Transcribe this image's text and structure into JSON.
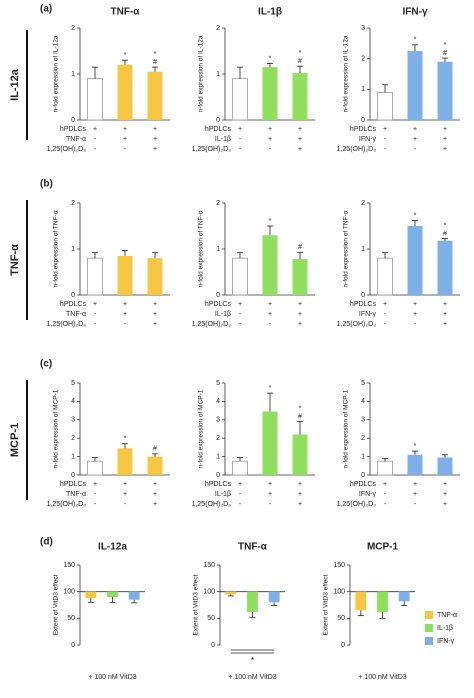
{
  "panel_labels": [
    "(a)",
    "(b)",
    "(c)",
    "(d)"
  ],
  "row_labels": [
    "IL-12a",
    "TNF-α",
    "MCP-1"
  ],
  "legend": [
    {
      "name": "TNF-α",
      "color": "#f7c744"
    },
    {
      "name": "IL-1β",
      "color": "#8fe05c"
    },
    {
      "name": "IFN-γ",
      "color": "#7cb0e6"
    }
  ],
  "chart_data": [
    {
      "type": "bar",
      "title": "TNF-α",
      "y_label": "n-fold expression of IL-12a",
      "values": [
        0.9,
        1.2,
        1.05
      ],
      "errors": [
        0.25,
        0.1,
        0.1
      ],
      "colors": [
        "#ffffff",
        "#f7c744",
        "#f7c744"
      ],
      "ylim": [
        0,
        2
      ],
      "yticks": [
        0,
        1,
        2
      ],
      "annotations": [
        null,
        [
          "*"
        ],
        [
          "*",
          "#"
        ]
      ],
      "table": [
        {
          "label": "hPDLCs",
          "cells": [
            "+",
            "+",
            "+"
          ]
        },
        {
          "label": "TNF-α",
          "cells": [
            "-",
            "+",
            "+"
          ]
        },
        {
          "label": "1,25(OH)₂D₃",
          "cells": [
            "-",
            "-",
            "+"
          ]
        }
      ]
    },
    {
      "type": "bar",
      "title": "IL-1β",
      "y_label": "n-fold expression of IL-12a",
      "values": [
        0.9,
        1.15,
        1.02
      ],
      "errors": [
        0.25,
        0.08,
        0.15
      ],
      "colors": [
        "#ffffff",
        "#8fe05c",
        "#8fe05c"
      ],
      "ylim": [
        0,
        2
      ],
      "yticks": [
        0,
        1,
        2
      ],
      "annotations": [
        null,
        [
          "*"
        ],
        [
          "*",
          "#"
        ]
      ],
      "table": [
        {
          "label": "hPDLCs",
          "cells": [
            "+",
            "+",
            "+"
          ]
        },
        {
          "label": "IL-1β",
          "cells": [
            "-",
            "+",
            "+"
          ]
        },
        {
          "label": "1,25(OH)₂D₃",
          "cells": [
            "-",
            "-",
            "+"
          ]
        }
      ]
    },
    {
      "type": "bar",
      "title": "IFN-γ",
      "y_label": "n-fold expression of IL-12a",
      "values": [
        0.9,
        2.25,
        1.9
      ],
      "errors": [
        0.25,
        0.2,
        0.12
      ],
      "colors": [
        "#ffffff",
        "#7cb0e6",
        "#7cb0e6"
      ],
      "ylim": [
        0,
        3
      ],
      "yticks": [
        0,
        1,
        2,
        3
      ],
      "annotations": [
        null,
        [
          "*"
        ],
        [
          "*",
          "#"
        ]
      ],
      "table": [
        {
          "label": "hPDLCs",
          "cells": [
            "+",
            "+",
            "+"
          ]
        },
        {
          "label": "IFN-γ",
          "cells": [
            "-",
            "+",
            "+"
          ]
        },
        {
          "label": "1,25(OH)₂D₃",
          "cells": [
            "-",
            "-",
            "+"
          ]
        }
      ]
    },
    {
      "type": "bar",
      "y_label": "n-fold expression of TNF-α",
      "values": [
        0.8,
        0.85,
        0.8
      ],
      "errors": [
        0.12,
        0.12,
        0.12
      ],
      "colors": [
        "#ffffff",
        "#f7c744",
        "#f7c744"
      ],
      "ylim": [
        0,
        2
      ],
      "yticks": [
        0,
        1,
        2
      ],
      "table": [
        {
          "label": "hPDLCs",
          "cells": [
            "+",
            "+",
            "+"
          ]
        },
        {
          "label": "TNF-α",
          "cells": [
            "-",
            "+",
            "+"
          ]
        },
        {
          "label": "1,25(OH)₂D₃",
          "cells": [
            "-",
            "-",
            "+"
          ]
        }
      ]
    },
    {
      "type": "bar",
      "y_label": "n-fold expression of TNF-α",
      "values": [
        0.8,
        1.3,
        0.78
      ],
      "errors": [
        0.12,
        0.2,
        0.15
      ],
      "colors": [
        "#ffffff",
        "#8fe05c",
        "#8fe05c"
      ],
      "ylim": [
        0,
        2
      ],
      "yticks": [
        0,
        1,
        2
      ],
      "annotations": [
        null,
        [
          "*"
        ],
        [
          "#"
        ]
      ],
      "table": [
        {
          "label": "hPDLCs",
          "cells": [
            "+",
            "+",
            "+"
          ]
        },
        {
          "label": "IL-1β",
          "cells": [
            "-",
            "+",
            "+"
          ]
        },
        {
          "label": "1,25(OH)₂D₃",
          "cells": [
            "-",
            "-",
            "+"
          ]
        }
      ]
    },
    {
      "type": "bar",
      "y_label": "n-fold expression of TNF-α",
      "values": [
        0.8,
        1.5,
        1.18
      ],
      "errors": [
        0.12,
        0.12,
        0.05
      ],
      "colors": [
        "#ffffff",
        "#7cb0e6",
        "#7cb0e6"
      ],
      "ylim": [
        0,
        2
      ],
      "yticks": [
        0,
        1,
        2
      ],
      "annotations": [
        null,
        [
          "*"
        ],
        [
          "*",
          "#"
        ]
      ],
      "table": [
        {
          "label": "hPDLCs",
          "cells": [
            "+",
            "+",
            "+"
          ]
        },
        {
          "label": "IFN-γ",
          "cells": [
            "-",
            "+",
            "+"
          ]
        },
        {
          "label": "1,25(OH)₂D₃",
          "cells": [
            "-",
            "-",
            "+"
          ]
        }
      ]
    },
    {
      "type": "bar",
      "y_label": "n-fold expression of MCP-1",
      "values": [
        0.75,
        1.45,
        1.0
      ],
      "errors": [
        0.2,
        0.25,
        0.15
      ],
      "colors": [
        "#ffffff",
        "#f7c744",
        "#f7c744"
      ],
      "ylim": [
        0,
        5
      ],
      "yticks": [
        0,
        1,
        2,
        3,
        4,
        5
      ],
      "annotations": [
        null,
        [
          "*"
        ],
        [
          "#"
        ]
      ],
      "table": [
        {
          "label": "hPDLCs",
          "cells": [
            "+",
            "+",
            "+"
          ]
        },
        {
          "label": "TNF-α",
          "cells": [
            "-",
            "+",
            "+"
          ]
        },
        {
          "label": "1,25(OH)₂D₃",
          "cells": [
            "-",
            "-",
            "+"
          ]
        }
      ]
    },
    {
      "type": "bar",
      "y_label": "n-fold expression of MCP-1",
      "values": [
        0.75,
        3.45,
        2.2
      ],
      "errors": [
        0.2,
        1.0,
        0.7
      ],
      "colors": [
        "#ffffff",
        "#8fe05c",
        "#8fe05c"
      ],
      "ylim": [
        0,
        5
      ],
      "yticks": [
        0,
        1,
        2,
        3,
        4,
        5
      ],
      "annotations": [
        null,
        [
          "*"
        ],
        [
          "*",
          "#"
        ]
      ],
      "table": [
        {
          "label": "hPDLCs",
          "cells": [
            "+",
            "+",
            "+"
          ]
        },
        {
          "label": "IL-1β",
          "cells": [
            "-",
            "+",
            "+"
          ]
        },
        {
          "label": "1,25(OH)₂D₃",
          "cells": [
            "-",
            "-",
            "+"
          ]
        }
      ]
    },
    {
      "type": "bar",
      "y_label": "n-fold expression of MCP-1",
      "values": [
        0.75,
        1.1,
        0.95
      ],
      "errors": [
        0.15,
        0.2,
        0.15
      ],
      "colors": [
        "#ffffff",
        "#7cb0e6",
        "#7cb0e6"
      ],
      "ylim": [
        0,
        5
      ],
      "yticks": [
        0,
        1,
        2,
        3,
        4,
        5
      ],
      "annotations": [
        null,
        [
          "*"
        ],
        null
      ],
      "table": [
        {
          "label": "hPDLCs",
          "cells": [
            "+",
            "+",
            "+"
          ]
        },
        {
          "label": "IFN-γ",
          "cells": [
            "-",
            "+",
            "+"
          ]
        },
        {
          "label": "1,25(OH)₂D₃",
          "cells": [
            "-",
            "-",
            "+"
          ]
        }
      ]
    },
    {
      "type": "bar",
      "title": "IL-12a",
      "y_label": "Extent of VitD3 effect",
      "x_label": "+ 100 nM VitD3",
      "baseline": 100,
      "values": [
        88,
        90,
        85
      ],
      "errors": [
        8,
        10,
        6
      ],
      "colors": [
        "#f7c744",
        "#8fe05c",
        "#7cb0e6"
      ],
      "ylim": [
        0,
        150
      ],
      "yticks": [
        0,
        50,
        100,
        150
      ]
    },
    {
      "type": "bar",
      "title": "TNF-α",
      "y_label": "Extent of VitD3 effect",
      "x_label": "+ 100 nM VitD3",
      "baseline": 100,
      "values": [
        95,
        62,
        80
      ],
      "errors": [
        3,
        10,
        6
      ],
      "colors": [
        "#f7c744",
        "#8fe05c",
        "#7cb0e6"
      ],
      "ylim": [
        0,
        150
      ],
      "yticks": [
        0,
        50,
        100,
        150
      ],
      "bracket_label": "*"
    },
    {
      "type": "bar",
      "title": "MCP-1",
      "y_label": "Extent of VitD3 effect",
      "x_label": "+ 100 nM VitD3",
      "baseline": 100,
      "values": [
        65,
        62,
        82
      ],
      "errors": [
        10,
        12,
        8
      ],
      "colors": [
        "#f7c744",
        "#8fe05c",
        "#7cb0e6"
      ],
      "ylim": [
        0,
        150
      ],
      "yticks": [
        0,
        50,
        100,
        150
      ]
    }
  ]
}
